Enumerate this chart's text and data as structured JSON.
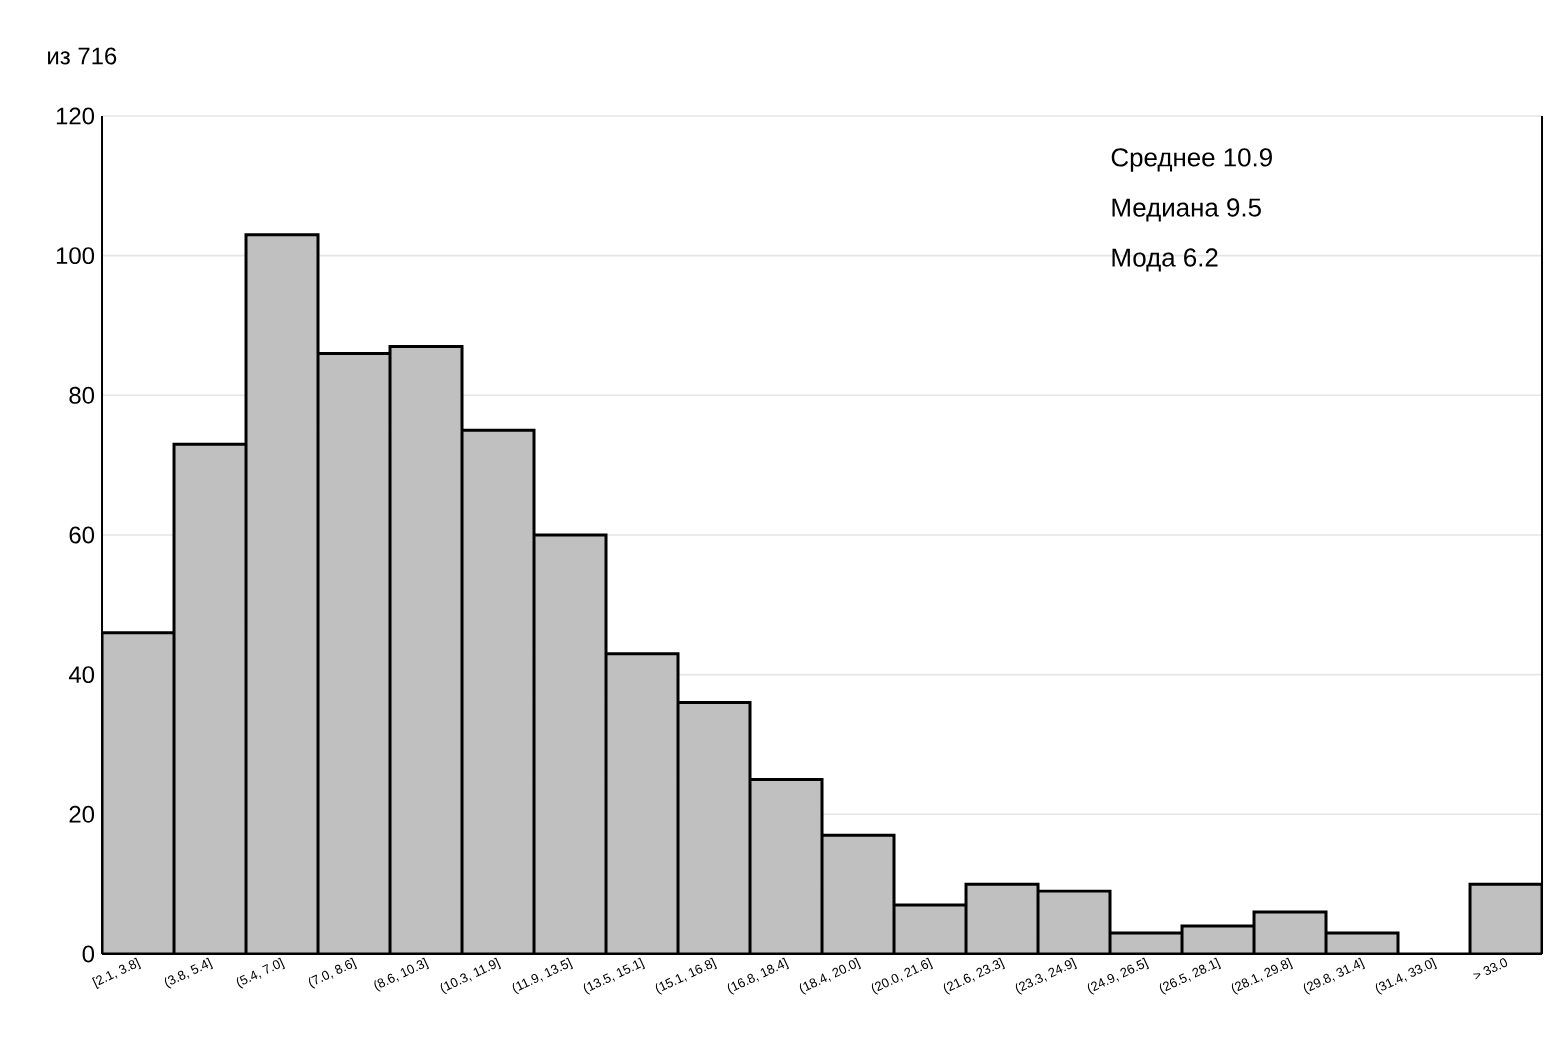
{
  "chart_data": {
    "type": "bar",
    "title": "из 716",
    "categories": [
      "[2.1, 3.8]",
      "(3.8, 5.4]",
      "(5.4, 7.0]",
      "(7.0, 8.6]",
      "(8.6, 10.3]",
      "(10.3, 11.9]",
      "(11.9, 13.5]",
      "(13.5, 15.1]",
      "(15.1, 16.8]",
      "(16.8, 18.4]",
      "(18.4, 20.0]",
      "(20.0, 21.6]",
      "(21.6, 23.3]",
      "(23.3, 24.9]",
      "(24.9, 26.5]",
      "(26.5, 28.1]",
      "(28.1, 29.8]",
      "(29.8, 31.4]",
      "(31.4, 33.0]",
      "> 33.0"
    ],
    "values": [
      46,
      73,
      103,
      86,
      87,
      75,
      60,
      43,
      36,
      25,
      17,
      7,
      10,
      9,
      3,
      4,
      6,
      3,
      0,
      10
    ],
    "color": "#c0c0c0",
    "ylim": [
      0,
      120
    ],
    "yticks": [
      0,
      20,
      40,
      60,
      80,
      100,
      120
    ],
    "grid": "y",
    "annotations": [
      "Среднее 10.9",
      "Медиана 9.5",
      "Мода 6.2"
    ]
  }
}
